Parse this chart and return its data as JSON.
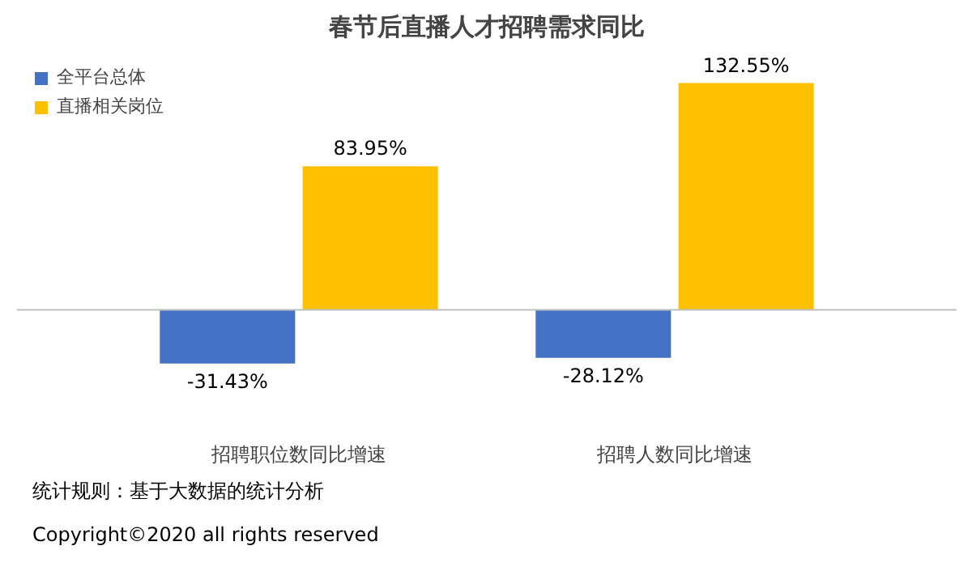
{
  "chart_data": {
    "type": "bar",
    "title": "春节后直播人才招聘需求同比",
    "categories": [
      "招聘职位数同比增速",
      "招聘人数同比增速"
    ],
    "series": [
      {
        "name": "全平台总体",
        "color": "#4472c4",
        "values": [
          -31.43,
          -28.12
        ],
        "value_labels": [
          "-31.43%",
          "-28.12%"
        ]
      },
      {
        "name": "直播相关岗位",
        "color": "#ffc000",
        "values": [
          83.95,
          132.55
        ],
        "value_labels": [
          "83.95%",
          "132.55%"
        ]
      }
    ],
    "legend": "top left",
    "grid": false,
    "annotations": [
      "统计规则：基于大数据的统计分析",
      "Copyright©2020 all rights reserved"
    ]
  }
}
